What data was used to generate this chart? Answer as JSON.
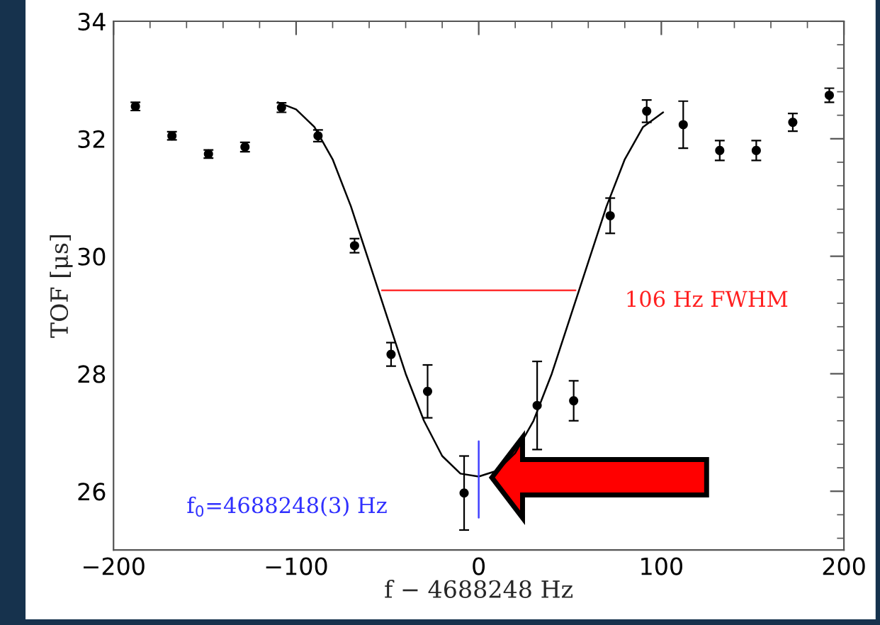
{
  "chart_data": {
    "type": "scatter",
    "xlabel": "f − 4688248 Hz",
    "ylabel": "TOF [μs]",
    "xlim": [
      -200,
      200
    ],
    "xticks": [
      -200,
      -100,
      0,
      100,
      200
    ],
    "ylim": [
      25,
      34
    ],
    "yticks": [
      26,
      28,
      30,
      32,
      34
    ],
    "annotations": [
      "106 Hz FWHM",
      "f$_{0}$=4688248(3) Hz"
    ],
    "series": [
      {
        "color": "#000000",
        "marker": "circle",
        "x": [
          -188,
          -168,
          -148,
          -128,
          -108,
          -88,
          -68,
          -48,
          -28,
          -8,
          12,
          32,
          52,
          72,
          92,
          112,
          132,
          152,
          172,
          192
        ],
        "values": [
          32.55,
          32.05,
          31.74,
          31.86,
          32.53,
          32.05,
          30.18,
          28.33,
          27.7,
          25.97,
          null,
          27.46,
          27.54,
          30.69,
          32.47,
          32.24,
          31.8,
          31.8,
          32.28,
          32.74
        ],
        "errors": [
          0.07,
          0.07,
          0.07,
          0.08,
          0.08,
          0.1,
          0.12,
          0.2,
          0.45,
          0.63,
          null,
          0.75,
          0.34,
          0.3,
          0.19,
          0.4,
          0.17,
          0.17,
          0.15,
          0.12
        ]
      },
      {
        "type": "line",
        "color": "#000000",
        "x": [
          -110,
          -100,
          -90,
          -80,
          -70,
          -60,
          -50,
          -40,
          -30,
          -20,
          -10,
          0,
          10,
          20,
          30,
          40,
          50,
          60,
          70,
          80,
          90,
          101
        ],
        "values": [
          32.62,
          32.5,
          32.2,
          31.65,
          30.85,
          29.9,
          28.95,
          28.0,
          27.2,
          26.6,
          26.3,
          26.25,
          26.35,
          26.65,
          27.2,
          28.0,
          28.95,
          29.9,
          30.85,
          31.65,
          32.2,
          32.45
        ]
      },
      {
        "type": "line",
        "color": "#ff3030",
        "x": [
          -53,
          53
        ],
        "values": [
          29.42,
          29.42
        ]
      },
      {
        "type": "line",
        "color": "#4040ff",
        "x": [
          0,
          0
        ],
        "values": [
          25.55,
          26.85
        ]
      }
    ]
  }
}
